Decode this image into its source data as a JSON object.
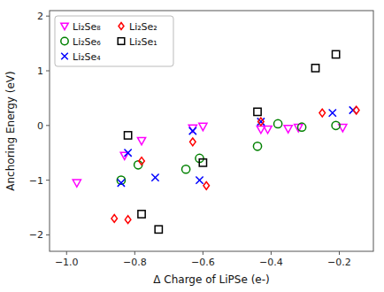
{
  "chart_data": {
    "type": "scatter",
    "xlabel": "Δ Charge of LiPSe (e-)",
    "ylabel": "Anchoring Energy (eV)",
    "xlim": [
      -1.05,
      -0.1
    ],
    "ylim": [
      -2.3,
      2.1
    ],
    "xticks": [
      {
        "value": -1.0,
        "label": "−1.0"
      },
      {
        "value": -0.8,
        "label": "−0.8"
      },
      {
        "value": -0.6,
        "label": "−0.6"
      },
      {
        "value": -0.4,
        "label": "−0.4"
      },
      {
        "value": -0.2,
        "label": "−0.2"
      }
    ],
    "yticks": [
      {
        "value": -2.0,
        "label": "−2"
      },
      {
        "value": -1.0,
        "label": "−1"
      },
      0,
      1,
      2
    ],
    "legend": "upper-left",
    "series": [
      {
        "name": "Li₂Se₈",
        "color": "#ff00ff",
        "marker": "triangle-down",
        "x": [
          -0.97,
          -0.83,
          -0.78,
          -0.63,
          -0.6,
          -0.43,
          -0.41,
          -0.35,
          -0.32,
          -0.19
        ],
        "values": [
          -1.05,
          -0.55,
          -0.28,
          -0.05,
          -0.02,
          -0.07,
          -0.07,
          -0.06,
          -0.04,
          -0.04
        ]
      },
      {
        "name": "Li₂Se₆",
        "color": "#008000",
        "marker": "circle",
        "x": [
          -0.84,
          -0.79,
          -0.65,
          -0.61,
          -0.44,
          -0.38,
          -0.31,
          -0.21
        ],
        "values": [
          -1.0,
          -0.72,
          -0.8,
          -0.6,
          -0.38,
          0.03,
          -0.03,
          0.0
        ]
      },
      {
        "name": "Li₂Se₄",
        "color": "#0000ff",
        "marker": "x",
        "x": [
          -0.84,
          -0.82,
          -0.74,
          -0.63,
          -0.61,
          -0.43,
          -0.22,
          -0.16
        ],
        "values": [
          -1.05,
          -0.5,
          -0.95,
          -0.1,
          -1.0,
          0.07,
          0.23,
          0.28
        ]
      },
      {
        "name": "Li₂Se₂",
        "color": "#ff0000",
        "marker": "diamond",
        "x": [
          -0.86,
          -0.82,
          -0.78,
          -0.63,
          -0.59,
          -0.43,
          -0.25,
          -0.15
        ],
        "values": [
          -1.7,
          -1.72,
          -0.65,
          -0.3,
          -1.1,
          0.07,
          0.23,
          0.28
        ]
      },
      {
        "name": "Li₂Se₁",
        "color": "#000000",
        "marker": "square",
        "x": [
          -0.82,
          -0.78,
          -0.73,
          -0.6,
          -0.44,
          -0.27,
          -0.21
        ],
        "values": [
          -0.18,
          -1.62,
          -1.9,
          -0.68,
          0.25,
          1.05,
          1.3
        ]
      }
    ]
  }
}
